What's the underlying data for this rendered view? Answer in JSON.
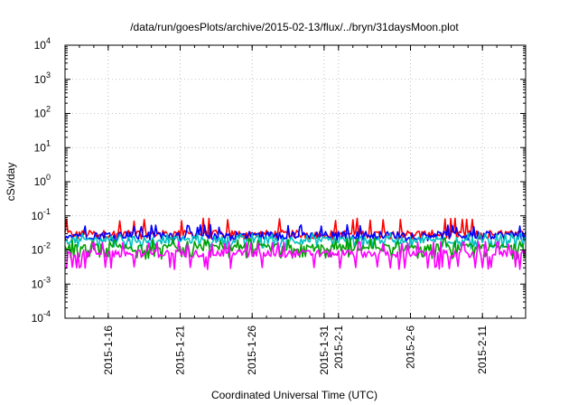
{
  "chart_data": {
    "type": "line",
    "title": "/data/run/goesPlots/archive/2015-02-13/flux/../bryn/31daysMoon.plot",
    "xlabel": "Coordinated Universal Time (UTC)",
    "ylabel": "cSv/day",
    "yscale": "log",
    "ylim": [
      0.0001,
      10000
    ],
    "xlim": [
      "2015-01-13",
      "2015-02-14"
    ],
    "grid": true,
    "y_ticks": [
      {
        "base": "10",
        "exp": "-4"
      },
      {
        "base": "10",
        "exp": "-3"
      },
      {
        "base": "10",
        "exp": "-2"
      },
      {
        "base": "10",
        "exp": "-1"
      },
      {
        "base": "10",
        "exp": "0"
      },
      {
        "base": "10",
        "exp": "1"
      },
      {
        "base": "10",
        "exp": "2"
      },
      {
        "base": "10",
        "exp": "3"
      },
      {
        "base": "10",
        "exp": "4"
      }
    ],
    "x_ticks": [
      "2015-1-16",
      "2015-1-21",
      "2015-1-26",
      "2015-1-31",
      "2015-2-1",
      "2015-2-6",
      "2015-2-11"
    ],
    "x_tick_dates": [
      "2015-01-16",
      "2015-01-21",
      "2015-01-26",
      "2015-01-31",
      "2015-02-01",
      "2015-02-06",
      "2015-02-11"
    ],
    "series": [
      {
        "color": "#ff0000",
        "base": 0.03,
        "low": 0.022,
        "high": 0.085
      },
      {
        "color": "#0000ff",
        "base": 0.028,
        "low": 0.02,
        "high": 0.055
      },
      {
        "color": "#00c0c0",
        "base": 0.02,
        "low": 0.012,
        "high": 0.032
      },
      {
        "color": "#00a000",
        "base": 0.012,
        "low": 0.006,
        "high": 0.022
      },
      {
        "color": "#ff00ff",
        "base": 0.008,
        "low": 0.003,
        "high": 0.018
      }
    ]
  }
}
